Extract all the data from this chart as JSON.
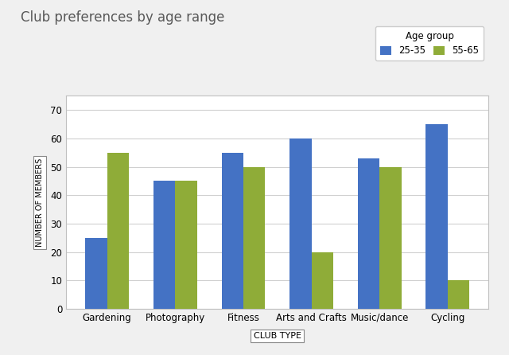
{
  "title": "Club preferences by age range",
  "categories": [
    "Gardening",
    "Photography",
    "Fitness",
    "Arts and Crafts",
    "Music/dance",
    "Cycling"
  ],
  "series": {
    "25-35": [
      25,
      45,
      55,
      60,
      53,
      65
    ],
    "55-65": [
      55,
      45,
      50,
      20,
      50,
      10
    ]
  },
  "colors": {
    "25-35": "#4472C4",
    "55-65": "#8fac38"
  },
  "legend_title": "Age group",
  "xlabel": "CLUB TYPE",
  "ylabel": "NUMBER OF MEMBERS",
  "ylim": [
    0,
    75
  ],
  "yticks": [
    0,
    10,
    20,
    30,
    40,
    50,
    60,
    70
  ],
  "bar_width": 0.32,
  "title_fontsize": 12,
  "axis_fontsize": 8.5,
  "tick_fontsize": 8.5,
  "legend_fontsize": 8.5,
  "xlabel_fontsize": 8,
  "ylabel_fontsize": 7,
  "background_color": "#f5f5f5",
  "plot_bg_color": "#ffffff",
  "outer_bg_color": "#f0f0f0",
  "grid_color": "#d0d0d0",
  "title_color": "#595959"
}
